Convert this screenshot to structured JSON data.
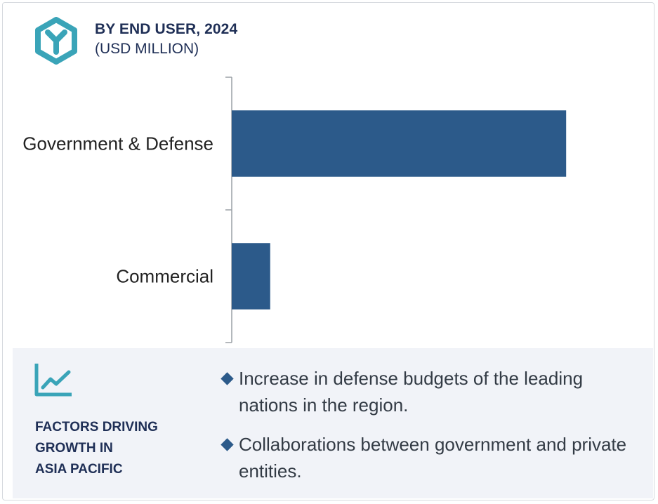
{
  "header": {
    "title": "BY END USER, 2024",
    "subtitle": "(USD MILLION)",
    "logo_icon": "hexagon-y-logo-icon"
  },
  "colors": {
    "bar": "#2c5a8a",
    "accent_teal": "#3aa4b8",
    "heading": "#1f2f56",
    "panel_bg": "#f1f3f8",
    "bullet": "#2c5a8a"
  },
  "chart_data": {
    "type": "bar",
    "orientation": "horizontal",
    "categories": [
      "Government & Defense",
      "Commercial"
    ],
    "values": [
      100,
      11.5
    ],
    "title": "BY END USER, 2024",
    "subtitle": "(USD MILLION)",
    "xlim": [
      0,
      126
    ],
    "grid": false,
    "legend": "none",
    "value_axis_shown": false
  },
  "factors": {
    "icon": "trend-line-icon",
    "title": "FACTORS DRIVING\nGROWTH IN\nASIA PACIFIC",
    "items": [
      "Increase in defense budgets of the leading nations in the region.",
      "Collaborations between government and private entities."
    ]
  }
}
